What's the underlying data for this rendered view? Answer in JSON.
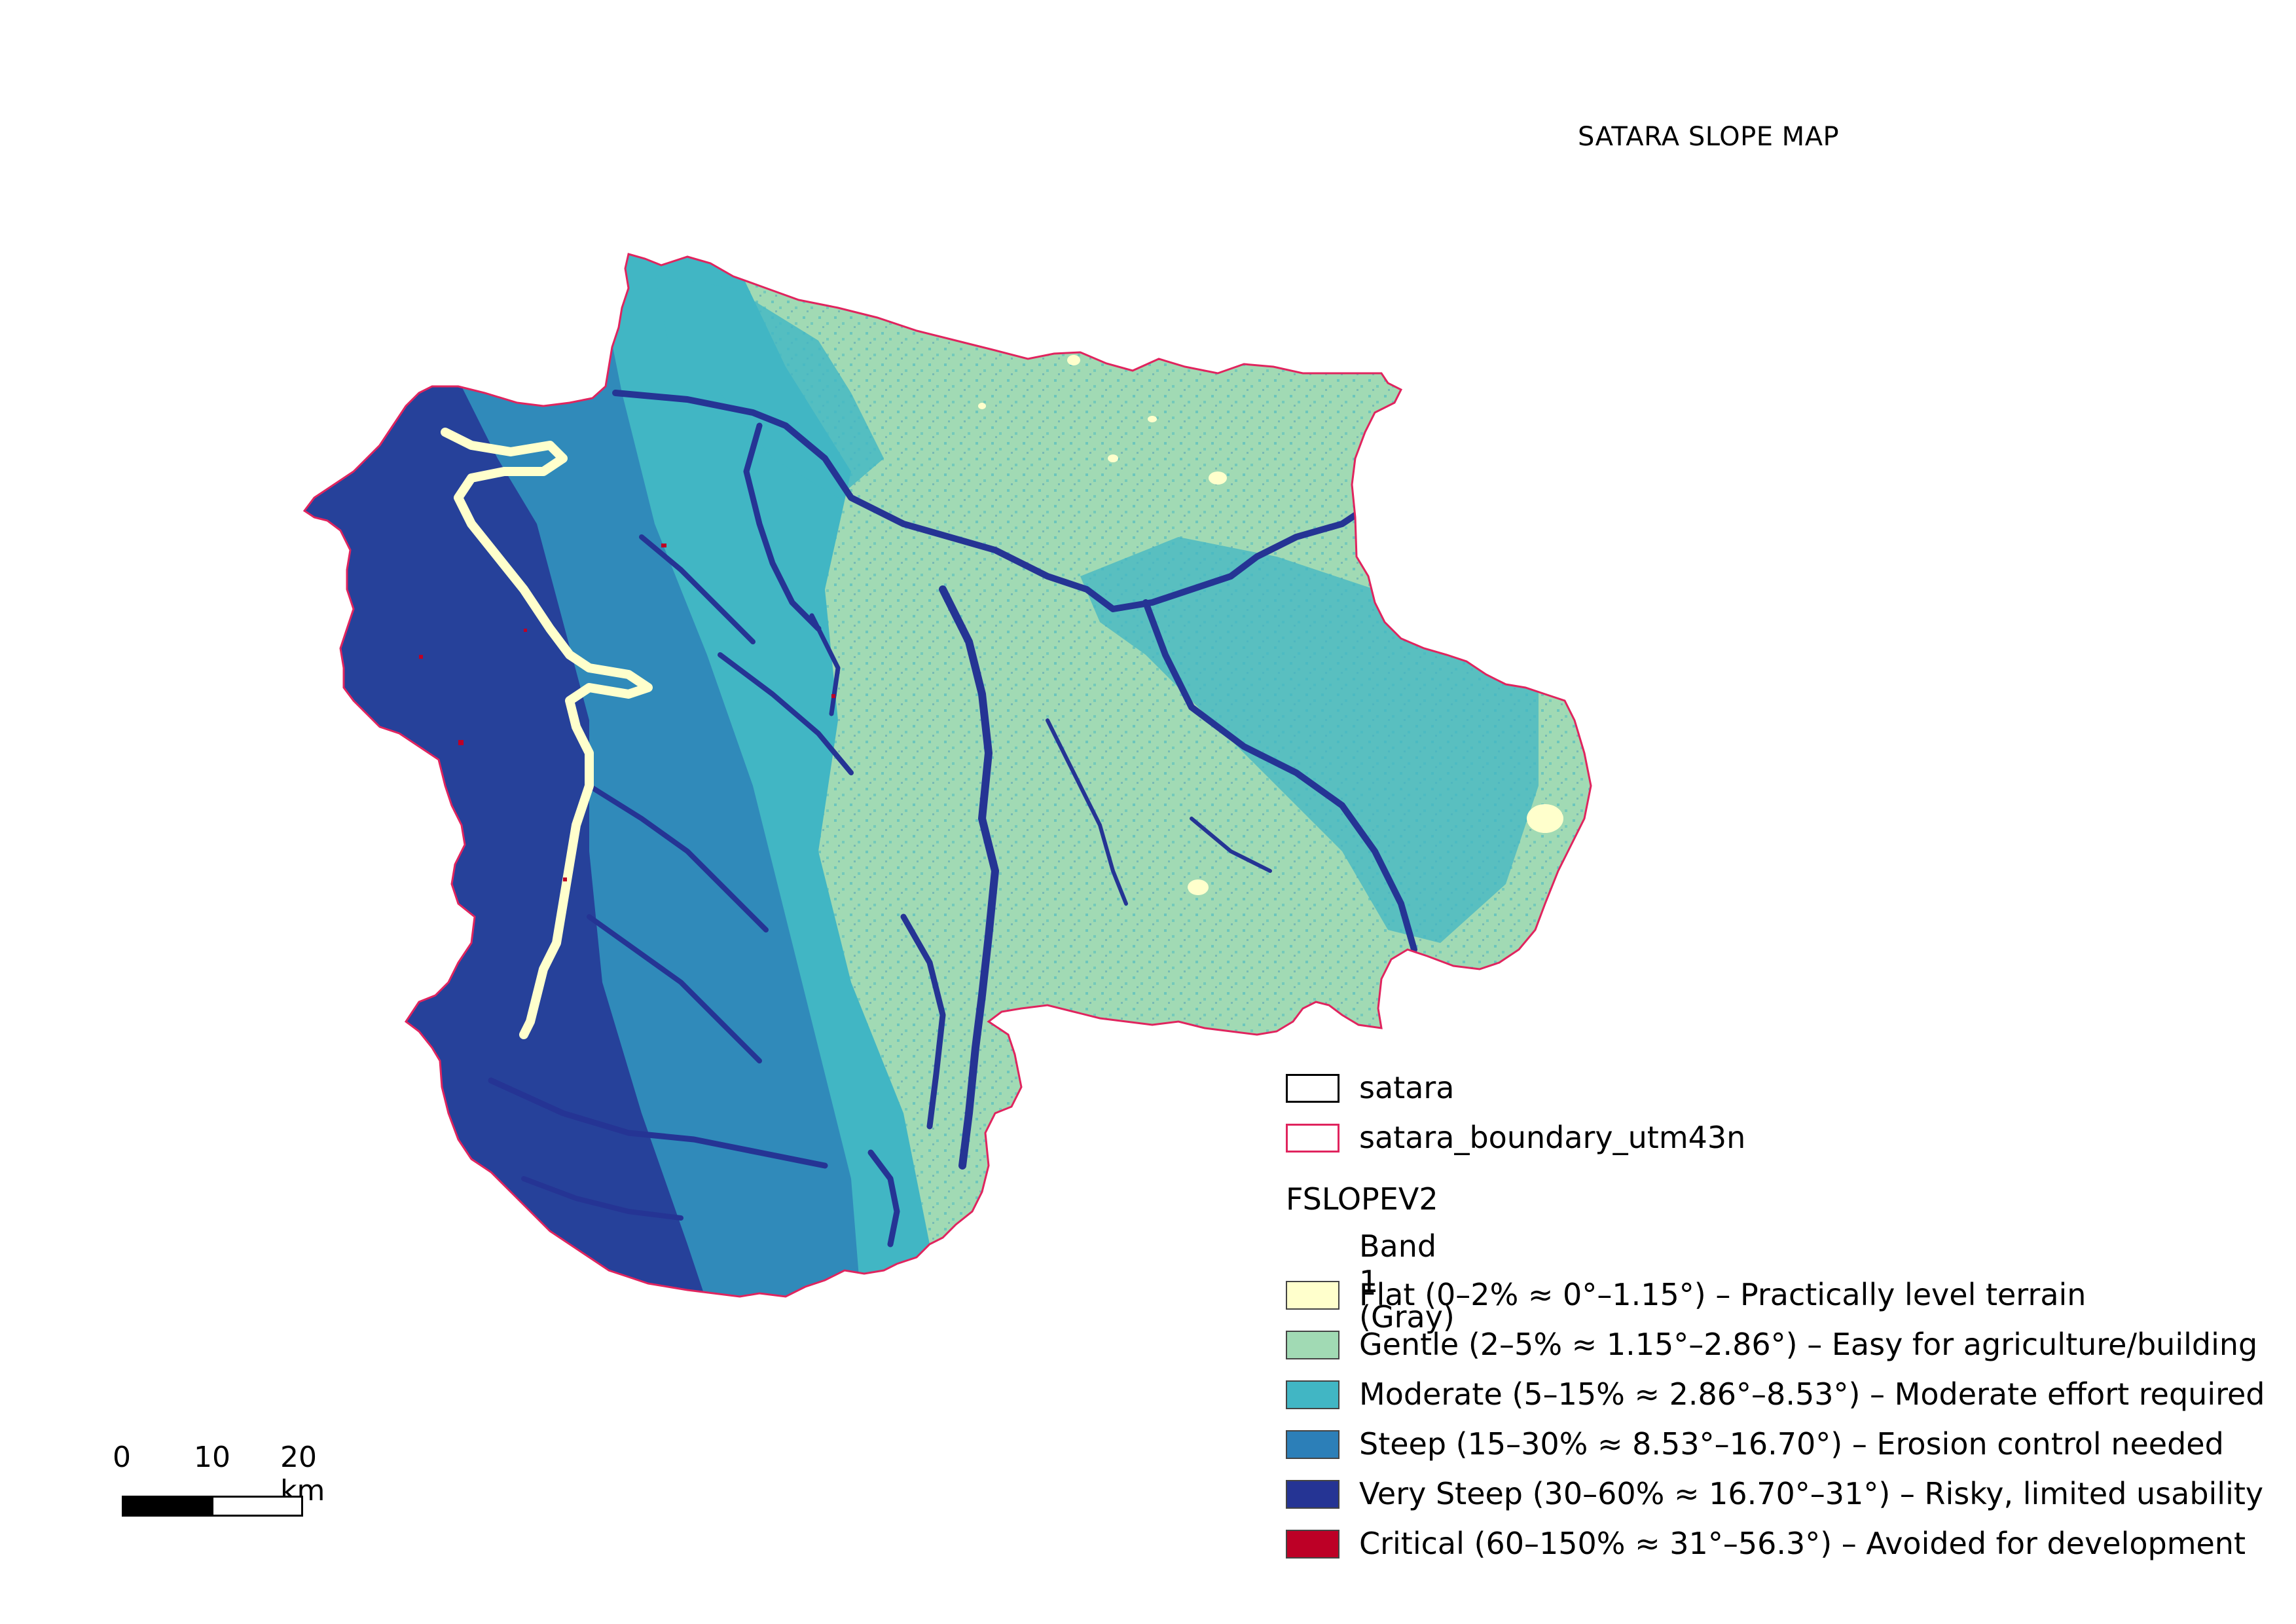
{
  "title": "SATARA SLOPE MAP",
  "legend": {
    "layers": [
      {
        "label": "satara",
        "fill": "#ffffff",
        "stroke": "#000000"
      },
      {
        "label": "satara_boundary_utm43n",
        "fill": "#ffffff",
        "stroke": "#e0245e"
      }
    ],
    "raster_name": "FSLOPEV2",
    "band": "Band 1 (Gray)",
    "classes": [
      {
        "label": "Flat (0–2% ≈ 0°–1.15°) – Practically level terrain",
        "color": "#ffffcc"
      },
      {
        "label": "Gentle (2–5% ≈ 1.15°–2.86°) – Easy for agriculture/building",
        "color": "#a1dab4"
      },
      {
        "label": "Moderate (5–15% ≈ 2.86°–8.53°) – Moderate effort required",
        "color": "#41b6c4"
      },
      {
        "label": "Steep (15–30% ≈ 8.53°–16.70°) – Erosion control needed",
        "color": "#2c7fb8"
      },
      {
        "label": "Very Steep (30–60% ≈ 16.70°–31°) – Risky, limited usability",
        "color": "#253494"
      },
      {
        "label": "Critical (60–150% ≈ 31°–56.3°) – Avoided for development",
        "color": "#bd0026"
      }
    ]
  },
  "scalebar": {
    "labels": [
      "0",
      "10",
      "20 km"
    ]
  },
  "colors": {
    "boundary": "#e0245e",
    "flat": "#ffffcc",
    "gentle": "#a1dab4",
    "moderate": "#41b6c4",
    "steep": "#2c7fb8",
    "very_steep": "#253494",
    "critical": "#bd0026"
  }
}
